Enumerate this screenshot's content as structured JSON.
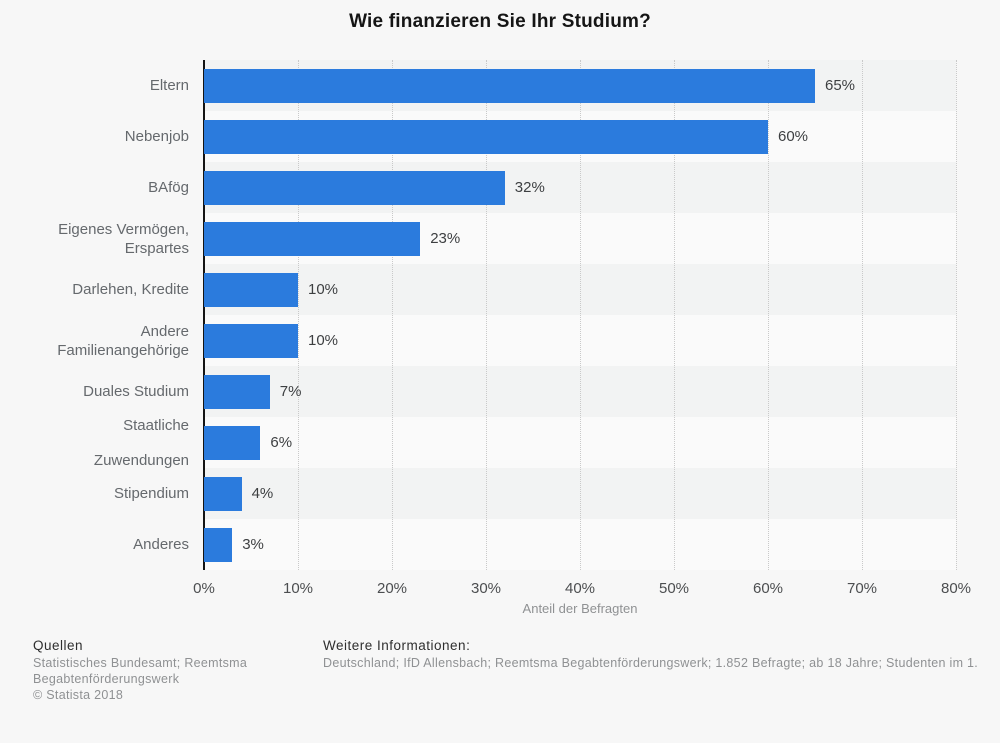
{
  "chart_data": {
    "type": "bar",
    "orientation": "horizontal",
    "title": "Wie finanzieren Sie Ihr Studium?",
    "categories": [
      "Eltern",
      "Nebenjob",
      "BAfög",
      "Eigenes Vermögen,\nErspartes",
      "Darlehen, Kredite",
      "Andere\nFamilienangehörige",
      "Duales Studium",
      "Staatliche\nZuwendungen",
      "Stipendium",
      "Anderes"
    ],
    "values": [
      65,
      60,
      32,
      23,
      10,
      10,
      7,
      6,
      4,
      3
    ],
    "value_labels": [
      "65%",
      "60%",
      "32%",
      "23%",
      "10%",
      "10%",
      "7%",
      "6%",
      "4%",
      "3%"
    ],
    "xlabel": "Anteil der Befragten",
    "x_ticks": [
      "0%",
      "10%",
      "20%",
      "30%",
      "40%",
      "50%",
      "60%",
      "70%",
      "80%"
    ],
    "xlim": [
      0,
      80
    ],
    "bar_color": "#2b7bdd",
    "grid": "vertical dotted gridlines every 10%",
    "legend": "none"
  },
  "footer": {
    "sources_heading": "Quellen",
    "sources_lines": [
      "Statistisches Bundesamt; Reemtsma",
      "Begabtenförderungswerk"
    ],
    "copyright": "© Statista 2018",
    "info_heading": "Weitere Informationen:",
    "info_text": "Deutschland; IfD Allensbach; Reemtsma Begabtenförderungswerk; 1.852 Befragte; ab 18 Jahre; Studenten im 1."
  }
}
